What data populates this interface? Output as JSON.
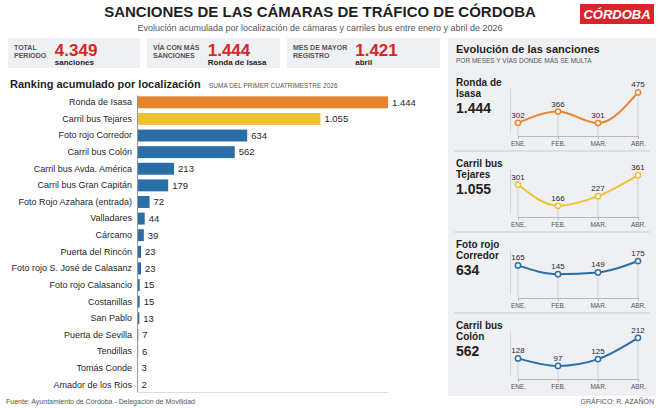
{
  "header": {
    "title": "SANCIONES DE LAS CÁMARAS DE TRÁFICO DE CÓRDOBA",
    "subtitle": "Evolución acumulada por localización de cámaras y carriles bus entre enero y abril de 2026",
    "logo": "CÓRDOBA"
  },
  "kpis": [
    {
      "label_lines": [
        "TOTAL",
        "PERIODO"
      ],
      "value": 4349,
      "value_label": "4.349",
      "detail": "sanciones"
    },
    {
      "label_lines": [
        "VÍA CON MÁS",
        "SANCIONES"
      ],
      "value": 1444,
      "value_label": "1.444",
      "detail": "Ronda de Isasa"
    },
    {
      "label_lines": [
        "MES DE MAYOR",
        "REGISTRO"
      ],
      "value": 1421,
      "value_label": "1.421",
      "detail": "abril"
    }
  ],
  "trend_panel": {
    "title": "Evolución de las sanciones",
    "subtitle": "POR MESES Y VÍAS DONDE MÁS SE MULTA"
  },
  "footer": {
    "source": "Fuente: Ayuntamiento de Córdoba - Delegación de Movilidad",
    "credit": "GRÁFICO: R. AZAÑÓN"
  },
  "chart_data": [
    {
      "type": "bar",
      "orientation": "horizontal",
      "title": "Ranking acumulado por localización",
      "subtitle": "SUMA DEL PRIMER CUATRIMESTRE 2026",
      "categories": [
        "Ronda de Isasa",
        "Carril bus Tejares",
        "Foto rojo Corredor",
        "Carril bus Colón",
        "Carril bus Avda. América",
        "Carril bus Gran Capitán",
        "Foto Rojo Azahara (entrada)",
        "Valladares",
        "Cárcamo",
        "Puerta del Rincón",
        "Foto rojo S. José de Calasanz",
        "Foto rojo Calasancio",
        "Costanillas",
        "San Pablo",
        "Puerta de Sevilla",
        "Tendillas",
        "Tomás Conde",
        "Amador de los Rios"
      ],
      "values": [
        1444,
        1055,
        634,
        562,
        213,
        179,
        72,
        44,
        39,
        23,
        23,
        15,
        15,
        13,
        7,
        6,
        3,
        2
      ],
      "value_labels": [
        "1.444",
        "1.055",
        "634",
        "562",
        "213",
        "179",
        "72",
        "44",
        "39",
        "23",
        "23",
        "15",
        "15",
        "13",
        "7",
        "6",
        "3",
        "2"
      ],
      "colors": [
        "#e8842c",
        "#f0c232",
        "#2b6ea6",
        "#2b6ea6",
        "#2b6ea6",
        "#2b6ea6",
        "#2b6ea6",
        "#2b6ea6",
        "#2b6ea6",
        "#2b6ea6",
        "#2b6ea6",
        "#2b6ea6",
        "#2b6ea6",
        "#2b6ea6",
        "#2b6ea6",
        "#2b6ea6",
        "#2b6ea6",
        "#2b6ea6"
      ],
      "xlim": [
        0,
        1444
      ],
      "xticks": [],
      "tick_labels": "y",
      "grid": false,
      "data_labels": true
    },
    {
      "type": "line",
      "title": "Ronda de Isasa",
      "total": {
        "value": 1444,
        "label": "1.444"
      },
      "categories": [
        "ENE.",
        "FEB.",
        "MAR.",
        "ABR."
      ],
      "values": [
        302,
        366,
        301,
        475
      ],
      "color": "#e8842c",
      "marker": "circle",
      "ylim": [
        250,
        500
      ],
      "yticks": [],
      "tick_labels": "x",
      "grid": false,
      "data_labels": true
    },
    {
      "type": "line",
      "title": "Carril bus Tejares",
      "total": {
        "value": 1055,
        "label": "1.055"
      },
      "categories": [
        "ENE.",
        "FEB.",
        "MAR.",
        "ABR."
      ],
      "values": [
        301,
        166,
        227,
        361
      ],
      "color": "#f0c232",
      "marker": "circle",
      "ylim": [
        120,
        400
      ],
      "yticks": [],
      "tick_labels": "x",
      "grid": false,
      "data_labels": true
    },
    {
      "type": "line",
      "title": "Foto rojo Corredor",
      "total": {
        "value": 634,
        "label": "634"
      },
      "categories": [
        "ENE.",
        "FEB.",
        "MAR.",
        "ABR."
      ],
      "values": [
        165,
        145,
        149,
        175
      ],
      "color": "#2b6ea6",
      "marker": "circle",
      "ylim": [
        100,
        200
      ],
      "yticks": [],
      "tick_labels": "x",
      "grid": false,
      "data_labels": true
    },
    {
      "type": "line",
      "title": "Carril bus Colón",
      "total": {
        "value": 562,
        "label": "562"
      },
      "categories": [
        "ENE.",
        "FEB.",
        "MAR.",
        "ABR."
      ],
      "values": [
        128,
        97,
        125,
        212
      ],
      "color": "#2b6ea6",
      "marker": "circle",
      "ylim": [
        60,
        240
      ],
      "yticks": [],
      "tick_labels": "x",
      "grid": false,
      "data_labels": true
    }
  ]
}
